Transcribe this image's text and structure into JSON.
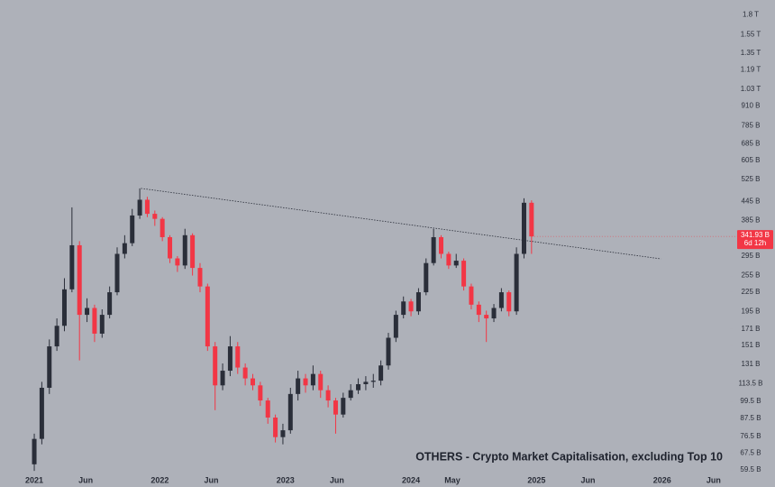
{
  "chart_data": {
    "type": "candlestick",
    "title": "OTHERS - Crypto Market Capitalisation, excluding Top 10",
    "log_scale": true,
    "up_color": "#2a2e39",
    "down_color": "#f23645",
    "x": [
      2021.0,
      2021.06,
      2021.12,
      2021.18,
      2021.24,
      2021.3,
      2021.36,
      2021.42,
      2021.48,
      2021.54,
      2021.6,
      2021.66,
      2021.72,
      2021.78,
      2021.84,
      2021.9,
      2021.96,
      2022.02,
      2022.08,
      2022.14,
      2022.2,
      2022.26,
      2022.32,
      2022.38,
      2022.44,
      2022.5,
      2022.56,
      2022.62,
      2022.68,
      2022.74,
      2022.8,
      2022.86,
      2022.92,
      2022.98,
      2023.04,
      2023.1,
      2023.16,
      2023.22,
      2023.28,
      2023.34,
      2023.4,
      2023.46,
      2023.52,
      2023.58,
      2023.64,
      2023.7,
      2023.76,
      2023.82,
      2023.88,
      2023.94,
      2024.0,
      2024.06,
      2024.12,
      2024.18,
      2024.24,
      2024.3,
      2024.36,
      2024.42,
      2024.48,
      2024.54,
      2024.6,
      2024.66,
      2024.72,
      2024.78,
      2024.84,
      2024.9,
      2024.96
    ],
    "open": [
      62,
      75,
      110,
      150,
      175,
      230,
      320,
      190,
      200,
      165,
      190,
      225,
      300,
      325,
      400,
      450,
      405,
      390,
      340,
      290,
      275,
      345,
      270,
      235,
      150,
      112,
      125,
      150,
      128,
      118,
      112,
      100,
      88,
      76,
      80,
      105,
      118,
      112,
      122,
      108,
      100,
      90,
      102,
      108,
      113,
      115,
      116,
      130,
      160,
      190,
      210,
      195,
      225,
      280,
      340,
      300,
      275,
      285,
      235,
      205,
      190,
      185,
      200,
      225,
      195,
      300,
      440
    ],
    "high": [
      78,
      115,
      158,
      185,
      250,
      425,
      330,
      215,
      205,
      198,
      235,
      315,
      345,
      420,
      490,
      460,
      415,
      395,
      345,
      295,
      362,
      350,
      280,
      240,
      155,
      132,
      162,
      155,
      132,
      122,
      115,
      102,
      90,
      84,
      110,
      125,
      122,
      130,
      125,
      112,
      102,
      106,
      113,
      118,
      120,
      122,
      135,
      166,
      196,
      218,
      214,
      232,
      290,
      362,
      345,
      305,
      300,
      290,
      240,
      210,
      196,
      206,
      232,
      228,
      315,
      455,
      448
    ],
    "low": [
      59,
      72,
      105,
      145,
      168,
      225,
      135,
      180,
      155,
      160,
      185,
      220,
      290,
      318,
      390,
      395,
      370,
      330,
      280,
      262,
      268,
      255,
      225,
      145,
      93,
      108,
      120,
      122,
      112,
      108,
      96,
      84,
      73,
      72,
      78,
      100,
      106,
      108,
      102,
      95,
      78,
      88,
      100,
      105,
      108,
      110,
      112,
      126,
      155,
      185,
      188,
      190,
      220,
      275,
      290,
      268,
      270,
      228,
      198,
      180,
      155,
      180,
      195,
      188,
      190,
      290,
      300
    ],
    "close": [
      75,
      110,
      150,
      175,
      230,
      320,
      190,
      200,
      165,
      190,
      225,
      300,
      325,
      400,
      450,
      405,
      390,
      340,
      290,
      275,
      345,
      270,
      235,
      150,
      112,
      125,
      150,
      128,
      118,
      112,
      100,
      88,
      76,
      80,
      105,
      118,
      112,
      122,
      108,
      100,
      90,
      102,
      108,
      113,
      115,
      116,
      130,
      160,
      190,
      210,
      195,
      225,
      280,
      340,
      300,
      275,
      285,
      235,
      205,
      190,
      185,
      200,
      225,
      195,
      300,
      440,
      341.93
    ],
    "xlim": [
      2020.727,
      2026.54
    ],
    "xticks": [
      {
        "value": 2021,
        "label": "2021"
      },
      {
        "value": 2021.41,
        "label": "Jun"
      },
      {
        "value": 2022,
        "label": "2022"
      },
      {
        "value": 2022.41,
        "label": "Jun"
      },
      {
        "value": 2023,
        "label": "2023"
      },
      {
        "value": 2023.41,
        "label": "Jun"
      },
      {
        "value": 2024,
        "label": "2024"
      },
      {
        "value": 2024.33,
        "label": "May"
      },
      {
        "value": 2025,
        "label": "2025"
      },
      {
        "value": 2025.41,
        "label": "Jun"
      },
      {
        "value": 2026,
        "label": "2026"
      },
      {
        "value": 2026.41,
        "label": "Jun"
      }
    ],
    "ylim": [
      52.3,
      2010
    ],
    "yticks": [
      {
        "value": 1800,
        "label": "1.8 T"
      },
      {
        "value": 1550,
        "label": "1.55 T"
      },
      {
        "value": 1350,
        "label": "1.35 T"
      },
      {
        "value": 1190,
        "label": "1.19 T"
      },
      {
        "value": 1030,
        "label": "1.03 T"
      },
      {
        "value": 910,
        "label": "910 B"
      },
      {
        "value": 785,
        "label": "785 B"
      },
      {
        "value": 685,
        "label": "685 B"
      },
      {
        "value": 605,
        "label": "605 B"
      },
      {
        "value": 525,
        "label": "525 B"
      },
      {
        "value": 445,
        "label": "445 B"
      },
      {
        "value": 385,
        "label": "385 B"
      },
      {
        "value": 295,
        "label": "295 B"
      },
      {
        "value": 255,
        "label": "255 B"
      },
      {
        "value": 225,
        "label": "225 B"
      },
      {
        "value": 195,
        "label": "195 B"
      },
      {
        "value": 171,
        "label": "171 B"
      },
      {
        "value": 151,
        "label": "151 B"
      },
      {
        "value": 131,
        "label": "131 B"
      },
      {
        "value": 113.5,
        "label": "113.5 B"
      },
      {
        "value": 99.5,
        "label": "99.5 B"
      },
      {
        "value": 87.5,
        "label": "87.5 B"
      },
      {
        "value": 76.5,
        "label": "76.5 B"
      },
      {
        "value": 67.5,
        "label": "67.5 B"
      },
      {
        "value": 59.5,
        "label": "59.5 B"
      }
    ],
    "trendline": {
      "x": [
        2021.85,
        2025.99
      ],
      "values": [
        490,
        289
      ],
      "color": "#2a2e39"
    },
    "last_value": 341.93,
    "last_value_label": "341.93 B",
    "countdown": "6d 12h",
    "last_color": "#f23645"
  }
}
